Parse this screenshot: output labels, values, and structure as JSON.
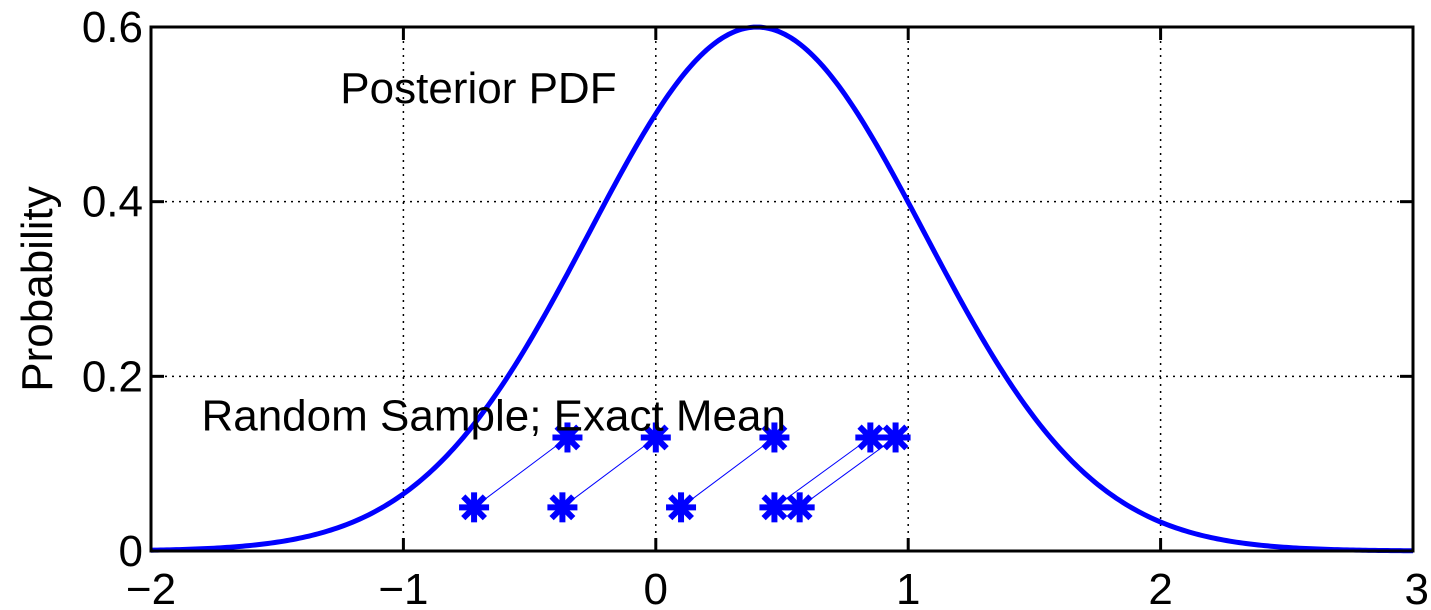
{
  "chart_data": {
    "type": "line",
    "title": "",
    "xlabel": "",
    "ylabel": "Probability",
    "xlim": [
      -2,
      3
    ],
    "ylim": [
      0,
      0.6
    ],
    "xticks": [
      -2,
      -1,
      0,
      1,
      2,
      3
    ],
    "xtick_labels": [
      "−2",
      "−1",
      "0",
      "1",
      "2",
      "3"
    ],
    "yticks": [
      0,
      0.2,
      0.4,
      0.6
    ],
    "ytick_labels": [
      "0",
      "0.2",
      "0.4",
      "0.6"
    ],
    "grid": true,
    "pdf": {
      "mean": 0.4,
      "std": 0.665,
      "color": "#0000ff"
    },
    "samples": {
      "color": "#0000ff",
      "marker": "asterisk",
      "lower_y": 0.05,
      "upper_y": 0.13,
      "pairs": [
        {
          "random": -0.72,
          "exact": -0.35
        },
        {
          "random": -0.37,
          "exact": 0.0
        },
        {
          "random": 0.1,
          "exact": 0.47
        },
        {
          "random": 0.47,
          "exact": 0.85
        },
        {
          "random": 0.57,
          "exact": 0.95
        }
      ]
    },
    "annotations": [
      {
        "text": "Posterior PDF",
        "x": -1.25,
        "y": 0.53
      },
      {
        "text": "Random Sample; Exact Mean",
        "x": -1.8,
        "y": 0.155
      }
    ]
  }
}
